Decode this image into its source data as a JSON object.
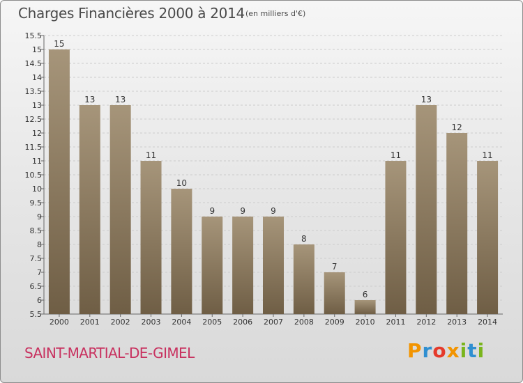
{
  "header": {
    "title": "Charges Financières 2000 à 2014",
    "subtitle": "(en milliers d'€)"
  },
  "footer": {
    "commune": "SAINT-MARTIAL-DE-GIMEL",
    "brand": "Proxiti",
    "brand_colors": [
      "#f29400",
      "#2f8fd1",
      "#e53a2b",
      "#f29400",
      "#7ab51d",
      "#2f8fd1",
      "#7ab51d"
    ]
  },
  "colors": {
    "bar_top": "#a6957a",
    "bar_bottom": "#6f5e45",
    "grid": "#cccccc",
    "axis": "#666666"
  },
  "chart_data": {
    "type": "bar",
    "title": "Charges Financières 2000 à 2014",
    "subtitle": "(en milliers d'€)",
    "categories": [
      "2000",
      "2001",
      "2002",
      "2003",
      "2004",
      "2005",
      "2006",
      "2007",
      "2008",
      "2009",
      "2010",
      "2011",
      "2012",
      "2013",
      "2014"
    ],
    "values": [
      15,
      13,
      13,
      11,
      10,
      9,
      9,
      9,
      8,
      7,
      6,
      11,
      13,
      12,
      11
    ],
    "data_labels": [
      "15",
      "13",
      "13",
      "11",
      "10",
      "9",
      "9",
      "9",
      "8",
      "7",
      "6",
      "11",
      "13",
      "12",
      "11"
    ],
    "ylim": [
      5.5,
      15.5
    ],
    "yticks": [
      "5.5",
      "6",
      "6.5",
      "7",
      "7.5",
      "8",
      "8.5",
      "9",
      "9.5",
      "10",
      "10.5",
      "11",
      "11.5",
      "12",
      "12.5",
      "13",
      "13.5",
      "14",
      "14.5",
      "15",
      "15.5"
    ],
    "grid": true,
    "legend": "none"
  }
}
